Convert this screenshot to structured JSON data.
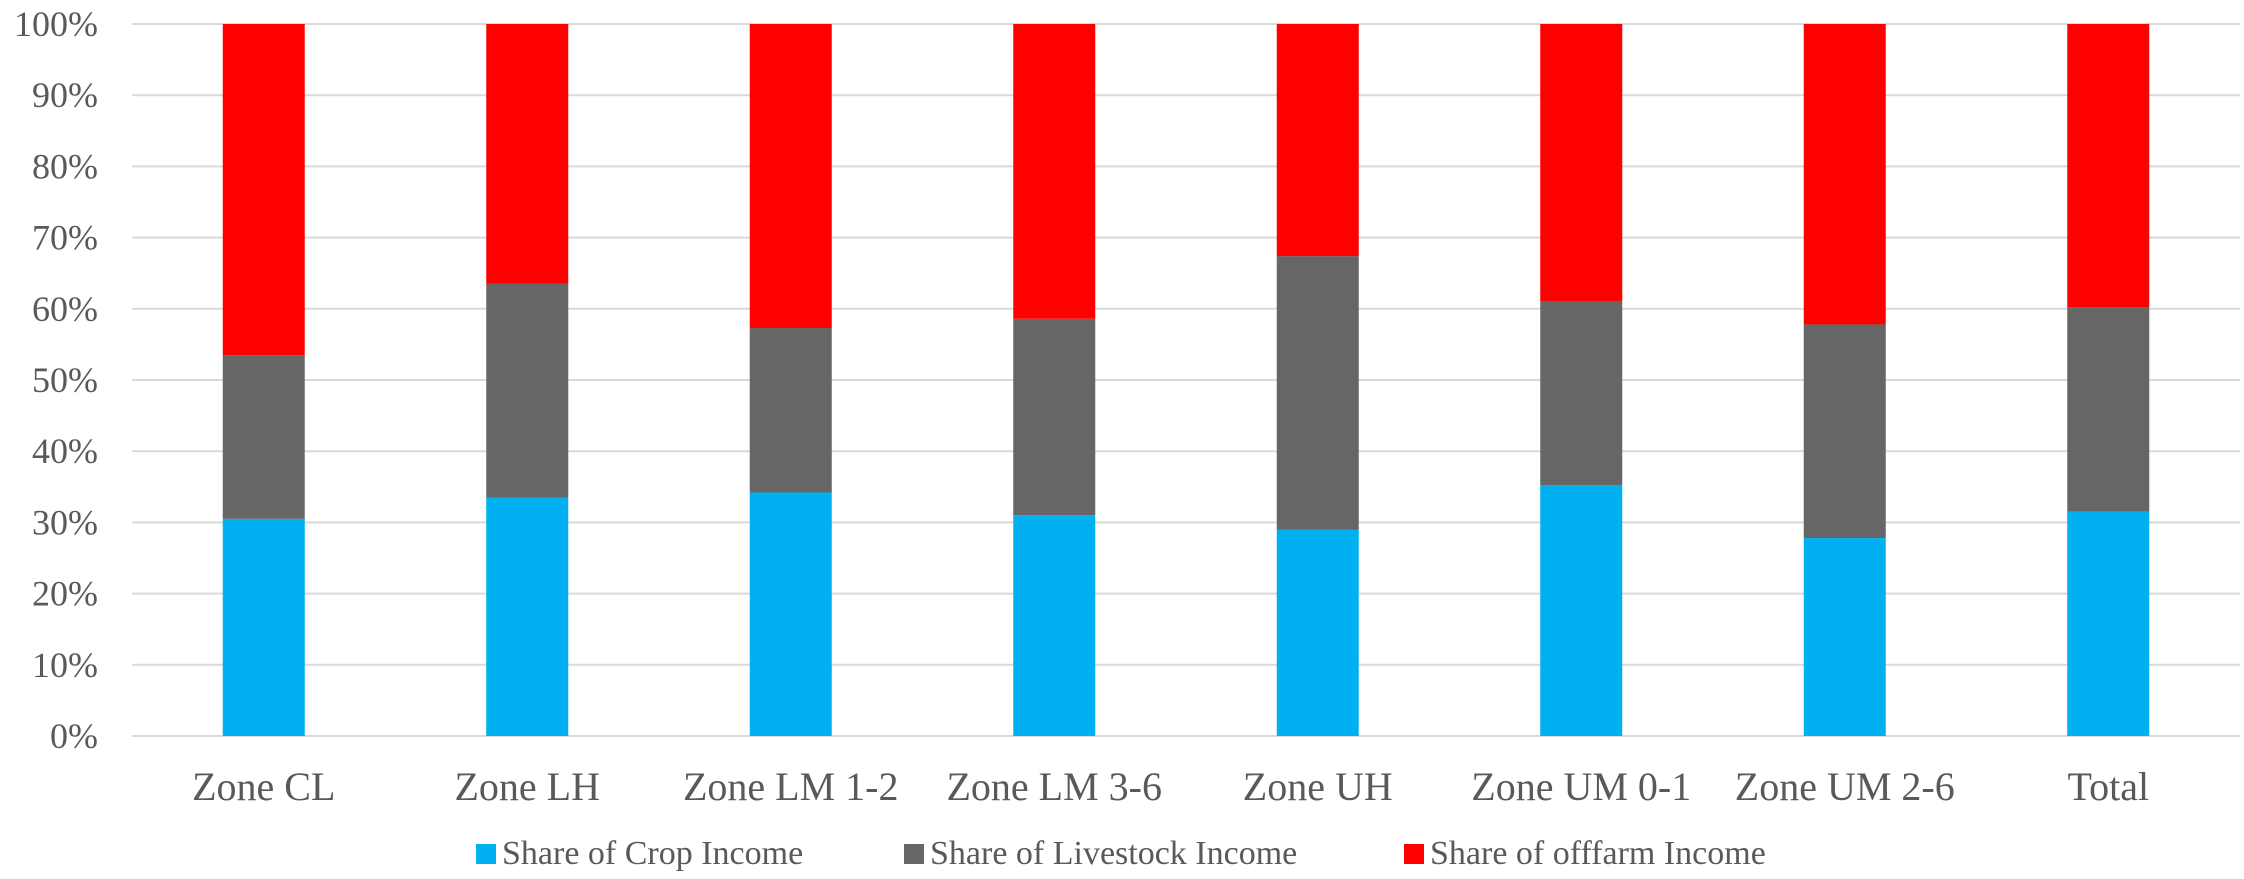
{
  "chart_data": {
    "type": "bar",
    "stacked": true,
    "categories": [
      "Zone CL",
      "Zone LH",
      "Zone LM 1-2",
      "Zone LM 3-6",
      "Zone UH",
      "Zone UM 0-1",
      "Zone UM 2-6",
      "Total"
    ],
    "series": [
      {
        "name": "Share of Crop Income",
        "color": "#00b0f0",
        "values": [
          30.5,
          33.5,
          34.2,
          31.0,
          29.0,
          35.2,
          27.8,
          31.5
        ]
      },
      {
        "name": "Share of Livestock Income",
        "color": "#666666",
        "values": [
          23.0,
          30.0,
          23.1,
          27.6,
          38.4,
          25.9,
          30.0,
          28.7
        ]
      },
      {
        "name": "Share of offfarm Income",
        "color": "#ff0000",
        "values": [
          46.5,
          36.5,
          42.7,
          41.4,
          32.6,
          38.9,
          42.2,
          39.8
        ]
      }
    ],
    "y_ticks": [
      "0%",
      "10%",
      "20%",
      "30%",
      "40%",
      "50%",
      "60%",
      "70%",
      "80%",
      "90%",
      "100%"
    ],
    "ylim": [
      0,
      100
    ],
    "grid": true,
    "legend_position": "bottom",
    "title": "",
    "xlabel": "",
    "ylabel": ""
  },
  "colors": {
    "grid": "#d9d9d9",
    "axis_text": "#595959"
  }
}
